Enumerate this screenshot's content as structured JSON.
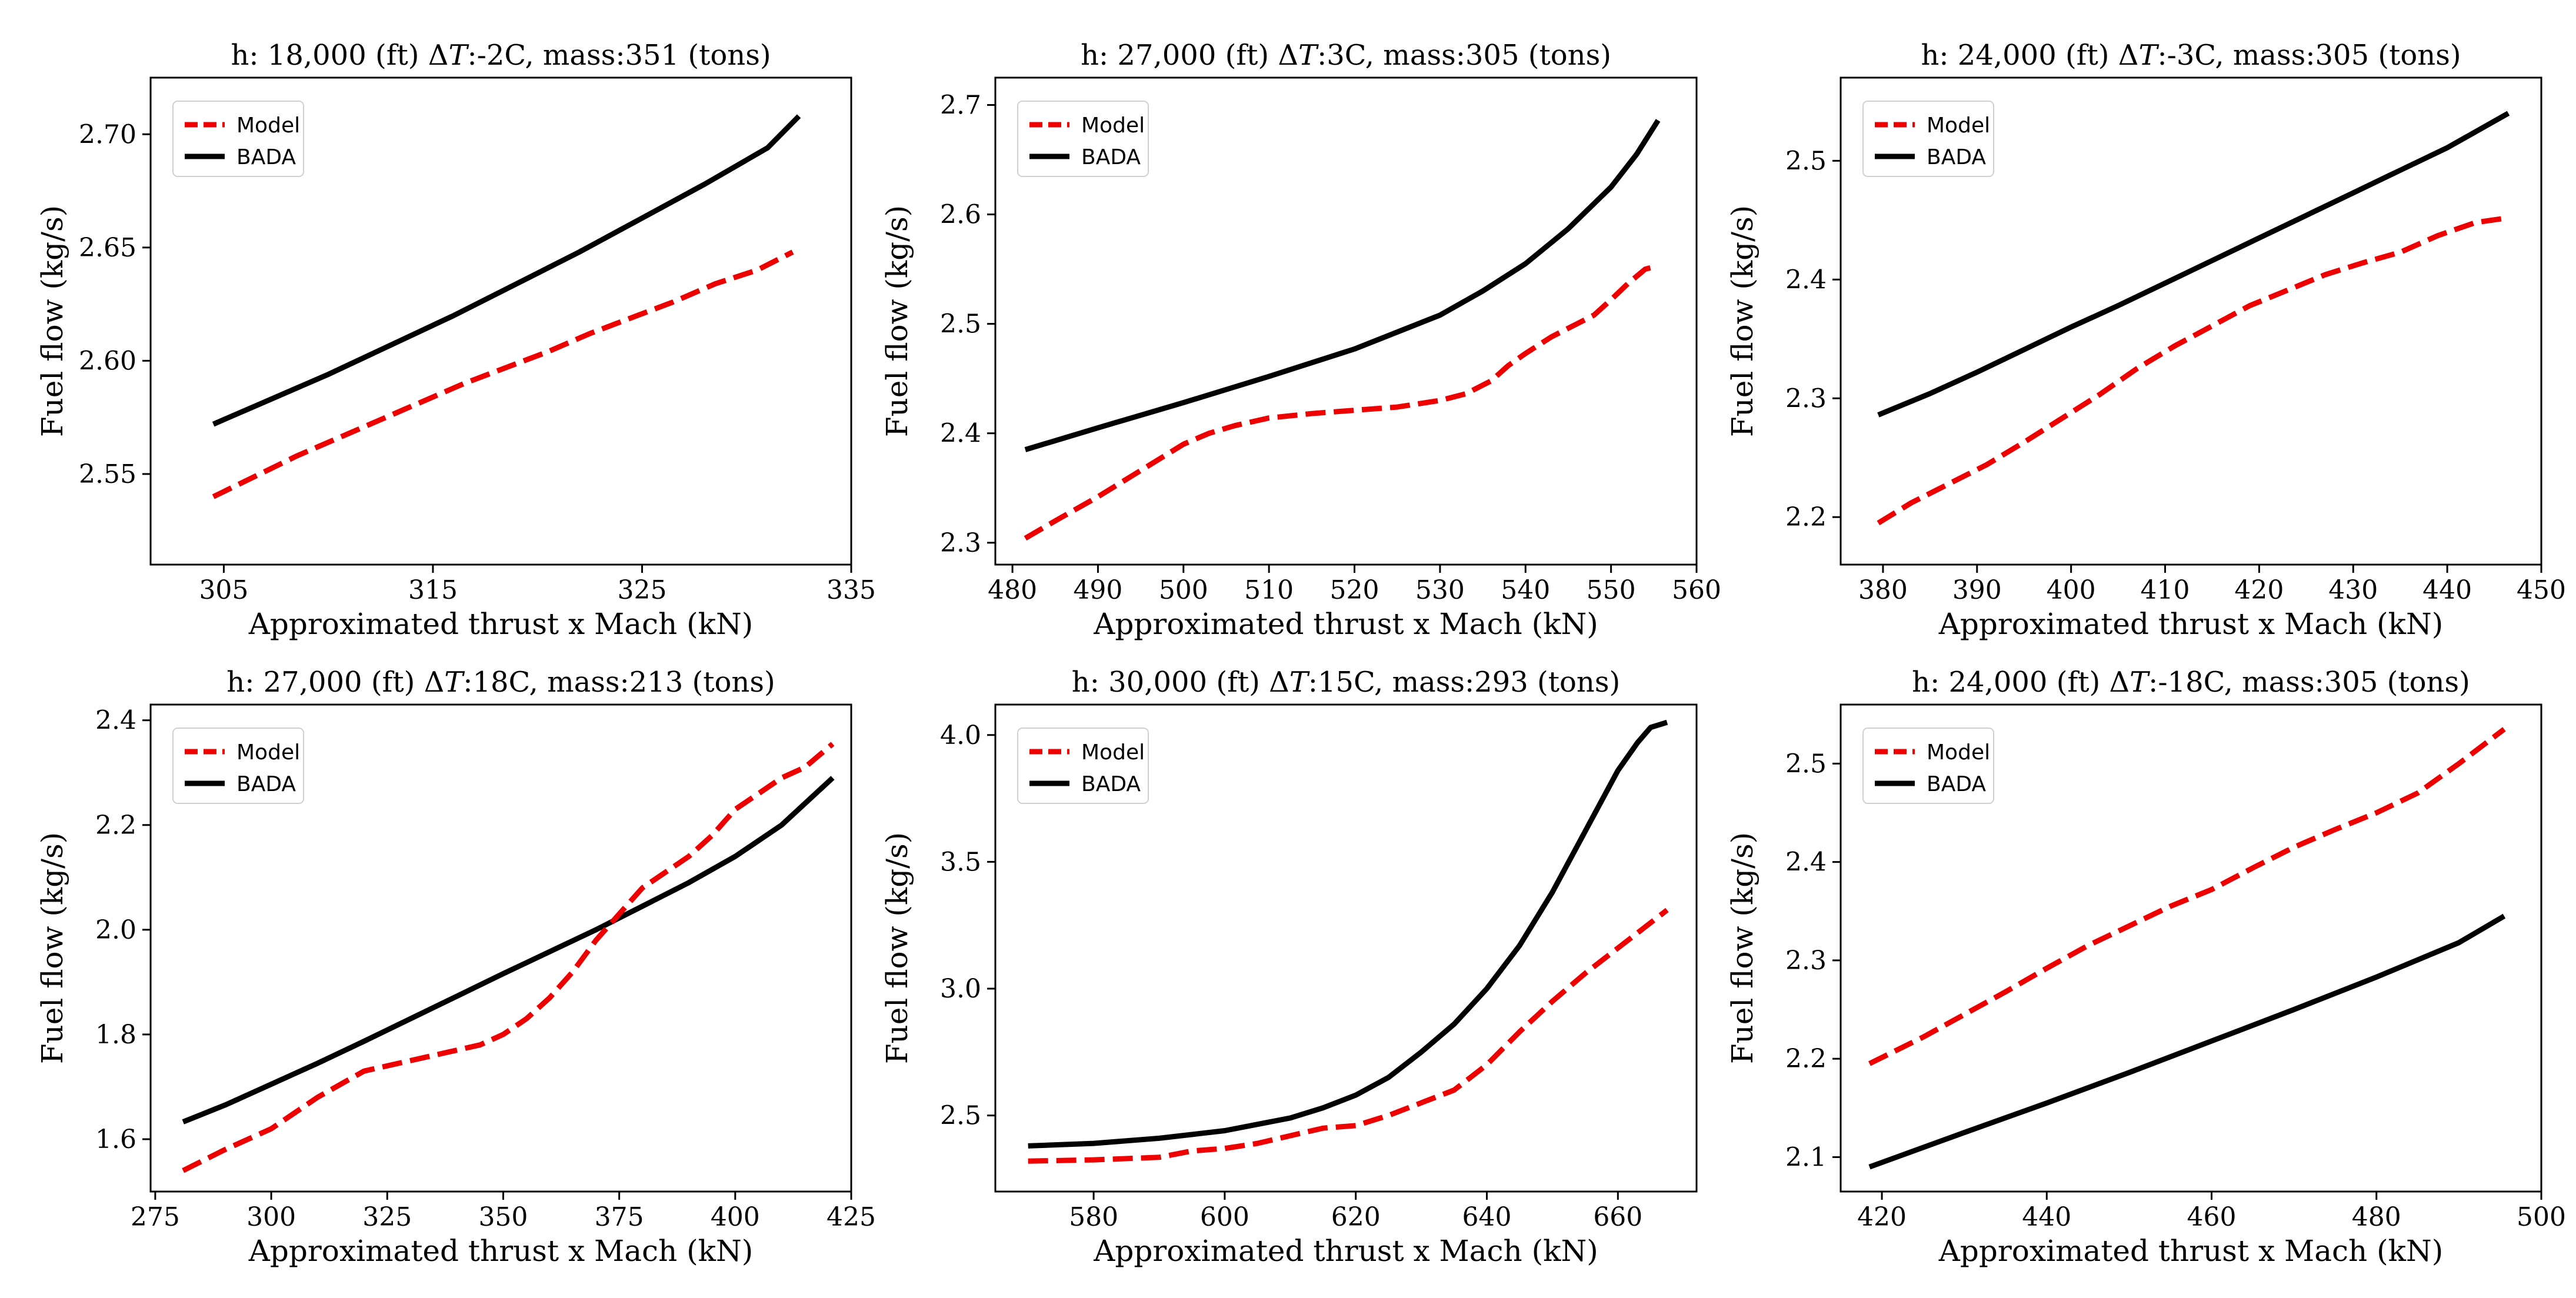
{
  "colors": {
    "model": "#ee0000",
    "bada": "#000000"
  },
  "chart_data": [
    {
      "type": "line",
      "title": "h: 18,000 (ft) ΔT:-2C, mass:351 (tons)",
      "title_parts": {
        "prefix": "h: 18,000 (ft) Δ",
        "italic": "T",
        "suffix": ":-2C, mass:351 (tons)"
      },
      "xlabel": "Approximated thrust x Mach (kN)",
      "ylabel": "Fuel flow (kg/s)",
      "xlim": [
        301.5,
        335
      ],
      "ylim": [
        2.51,
        2.725
      ],
      "xticks": [
        305,
        315,
        325,
        335
      ],
      "xtick_labels": [
        "305",
        "315",
        "325",
        "335"
      ],
      "yticks": [
        2.55,
        2.6,
        2.65,
        2.7
      ],
      "ytick_labels": [
        "2.55",
        "2.60",
        "2.65",
        "2.70"
      ],
      "legend": {
        "position": "upper-left",
        "order": [
          "Model",
          "BADA"
        ]
      },
      "series": [
        {
          "name": "Model",
          "style": "dashed",
          "x": [
            304.5,
            306.5,
            308.5,
            310.5,
            312.5,
            314.5,
            316.5,
            318.5,
            320.5,
            322.5,
            324.5,
            326.5,
            328.5,
            330.5,
            332.2
          ],
          "y": [
            2.54,
            2.549,
            2.558,
            2.566,
            2.574,
            2.582,
            2.59,
            2.597,
            2.604,
            2.612,
            2.619,
            2.626,
            2.634,
            2.64,
            2.648
          ]
        },
        {
          "name": "BADA",
          "style": "solid",
          "x": [
            304.5,
            307,
            310,
            313,
            316,
            319,
            322,
            325,
            328,
            331,
            332.5
          ],
          "y": [
            2.572,
            2.582,
            2.594,
            2.607,
            2.62,
            2.634,
            2.648,
            2.663,
            2.678,
            2.694,
            2.708
          ]
        }
      ]
    },
    {
      "type": "line",
      "title": "h: 27,000 (ft) ΔT:3C, mass:305 (tons)",
      "title_parts": {
        "prefix": "h: 27,000 (ft) Δ",
        "italic": "T",
        "suffix": ":3C, mass:305 (tons)"
      },
      "xlabel": "Approximated thrust x Mach (kN)",
      "ylabel": "Fuel flow (kg/s)",
      "xlim": [
        478,
        560
      ],
      "ylim": [
        2.28,
        2.725
      ],
      "xticks": [
        480,
        490,
        500,
        510,
        520,
        530,
        540,
        550,
        560
      ],
      "xtick_labels": [
        "480",
        "490",
        "500",
        "510",
        "520",
        "530",
        "540",
        "550",
        "560"
      ],
      "yticks": [
        2.3,
        2.4,
        2.5,
        2.6,
        2.7
      ],
      "ytick_labels": [
        "2.3",
        "2.4",
        "2.5",
        "2.6",
        "2.7"
      ],
      "legend": {
        "position": "upper-left",
        "order": [
          "Model",
          "BADA"
        ]
      },
      "series": [
        {
          "name": "Model",
          "style": "dashed",
          "x": [
            481.5,
            485,
            490,
            495,
            500,
            503,
            506,
            510,
            515,
            520,
            525,
            530,
            533,
            536,
            538,
            540,
            543,
            546,
            548,
            550,
            552,
            554,
            555.5
          ],
          "y": [
            2.304,
            2.32,
            2.342,
            2.366,
            2.39,
            2.4,
            2.407,
            2.414,
            2.418,
            2.421,
            2.424,
            2.43,
            2.436,
            2.448,
            2.462,
            2.473,
            2.488,
            2.5,
            2.508,
            2.522,
            2.537,
            2.55,
            2.553
          ]
        },
        {
          "name": "BADA",
          "style": "solid",
          "x": [
            481.5,
            490,
            500,
            510,
            520,
            530,
            535,
            540,
            545,
            550,
            553,
            555.5
          ],
          "y": [
            2.385,
            2.405,
            2.428,
            2.452,
            2.477,
            2.508,
            2.53,
            2.555,
            2.587,
            2.625,
            2.655,
            2.686
          ]
        }
      ]
    },
    {
      "type": "line",
      "title": "h: 24,000 (ft) ΔT:-3C, mass:305 (tons)",
      "title_parts": {
        "prefix": "h: 24,000 (ft) Δ",
        "italic": "T",
        "suffix": ":-3C, mass:305 (tons)"
      },
      "xlabel": "Approximated thrust x Mach (kN)",
      "ylabel": "Fuel flow (kg/s)",
      "xlim": [
        375.5,
        450
      ],
      "ylim": [
        2.16,
        2.57
      ],
      "xticks": [
        380,
        390,
        400,
        410,
        420,
        430,
        440,
        450
      ],
      "xtick_labels": [
        "380",
        "390",
        "400",
        "410",
        "420",
        "430",
        "440",
        "450"
      ],
      "yticks": [
        2.2,
        2.3,
        2.4,
        2.5
      ],
      "ytick_labels": [
        "2.2",
        "2.3",
        "2.4",
        "2.5"
      ],
      "legend": {
        "position": "upper-left",
        "order": [
          "Model",
          "BADA"
        ]
      },
      "series": [
        {
          "name": "Model",
          "style": "dashed",
          "x": [
            379.5,
            383,
            387,
            391,
            395,
            399,
            403,
            407,
            411,
            415,
            419,
            423,
            427,
            431,
            435,
            439,
            443,
            446.5
          ],
          "y": [
            2.195,
            2.212,
            2.228,
            2.244,
            2.263,
            2.283,
            2.303,
            2.325,
            2.344,
            2.361,
            2.378,
            2.391,
            2.404,
            2.414,
            2.423,
            2.437,
            2.448,
            2.452
          ]
        },
        {
          "name": "BADA",
          "style": "solid",
          "x": [
            379.5,
            385,
            390,
            395,
            400,
            405,
            410,
            415,
            420,
            425,
            430,
            435,
            440,
            446.5
          ],
          "y": [
            2.286,
            2.304,
            2.322,
            2.341,
            2.36,
            2.378,
            2.397,
            2.416,
            2.435,
            2.454,
            2.473,
            2.492,
            2.511,
            2.54
          ]
        }
      ]
    },
    {
      "type": "line",
      "title": "h: 27,000 (ft) ΔT:18C, mass:213 (tons)",
      "title_parts": {
        "prefix": "h: 27,000 (ft) Δ",
        "italic": "T",
        "suffix": ":18C, mass:213 (tons)"
      },
      "xlabel": "Approximated thrust x Mach (kN)",
      "ylabel": "Fuel flow (kg/s)",
      "xlim": [
        274,
        425
      ],
      "ylim": [
        1.5,
        2.43
      ],
      "xticks": [
        275,
        300,
        325,
        350,
        375,
        400,
        425
      ],
      "xtick_labels": [
        "275",
        "300",
        "325",
        "350",
        "375",
        "400",
        "425"
      ],
      "yticks": [
        1.6,
        1.8,
        2.0,
        2.2,
        2.4
      ],
      "ytick_labels": [
        "1.6",
        "1.8",
        "2.0",
        "2.2",
        "2.4"
      ],
      "legend": {
        "position": "upper-left",
        "order": [
          "Model",
          "BADA"
        ]
      },
      "series": [
        {
          "name": "Model",
          "style": "dashed",
          "x": [
            281,
            290,
            300,
            305,
            310,
            320,
            330,
            340,
            345,
            350,
            355,
            360,
            365,
            370,
            375,
            380,
            385,
            390,
            395,
            400,
            405,
            410,
            415,
            421
          ],
          "y": [
            1.54,
            1.58,
            1.62,
            1.65,
            1.68,
            1.73,
            1.75,
            1.77,
            1.78,
            1.8,
            1.83,
            1.87,
            1.92,
            1.98,
            2.03,
            2.08,
            2.11,
            2.14,
            2.18,
            2.23,
            2.26,
            2.29,
            2.31,
            2.355
          ]
        },
        {
          "name": "BADA",
          "style": "solid",
          "x": [
            281,
            290,
            300,
            310,
            320,
            330,
            340,
            350,
            360,
            370,
            380,
            390,
            400,
            410,
            421
          ],
          "y": [
            1.633,
            1.665,
            1.705,
            1.745,
            1.787,
            1.83,
            1.873,
            1.916,
            1.958,
            2.0,
            2.045,
            2.09,
            2.14,
            2.2,
            2.29
          ]
        }
      ]
    },
    {
      "type": "line",
      "title": "h: 30,000 (ft) ΔT:15C, mass:293 (tons)",
      "title_parts": {
        "prefix": "h: 30,000 (ft) Δ",
        "italic": "T",
        "suffix": ":15C, mass:293 (tons)"
      },
      "xlabel": "Approximated thrust x Mach (kN)",
      "ylabel": "Fuel flow (kg/s)",
      "xlim": [
        565,
        672
      ],
      "ylim": [
        2.2,
        4.12
      ],
      "xticks": [
        580,
        600,
        620,
        640,
        660
      ],
      "xtick_labels": [
        "580",
        "600",
        "620",
        "640",
        "660"
      ],
      "yticks": [
        2.5,
        3.0,
        3.5,
        4.0
      ],
      "ytick_labels": [
        "2.5",
        "3.0",
        "3.5",
        "4.0"
      ],
      "legend": {
        "position": "upper-left",
        "order": [
          "Model",
          "BADA"
        ]
      },
      "series": [
        {
          "name": "Model",
          "style": "dashed",
          "x": [
            570,
            580,
            590,
            595,
            600,
            605,
            610,
            615,
            620,
            625,
            630,
            635,
            640,
            645,
            650,
            655,
            660,
            664,
            667.5
          ],
          "y": [
            2.32,
            2.325,
            2.335,
            2.36,
            2.37,
            2.39,
            2.42,
            2.45,
            2.46,
            2.5,
            2.55,
            2.6,
            2.7,
            2.83,
            2.95,
            3.06,
            3.16,
            3.24,
            3.31
          ]
        },
        {
          "name": "BADA",
          "style": "solid",
          "x": [
            570,
            580,
            590,
            600,
            610,
            615,
            620,
            625,
            630,
            635,
            640,
            645,
            650,
            655,
            660,
            663,
            665,
            667.5
          ],
          "y": [
            2.38,
            2.39,
            2.41,
            2.44,
            2.49,
            2.53,
            2.58,
            2.65,
            2.75,
            2.86,
            3.0,
            3.17,
            3.38,
            3.62,
            3.86,
            3.97,
            4.03,
            4.05
          ]
        }
      ]
    },
    {
      "type": "line",
      "title": "h: 24,000 (ft) ΔT:-18C, mass:305 (tons)",
      "title_parts": {
        "prefix": "h: 24,000 (ft) Δ",
        "italic": "T",
        "suffix": ":-18C, mass:305 (tons)"
      },
      "xlabel": "Approximated thrust x Mach (kN)",
      "ylabel": "Fuel flow (kg/s)",
      "xlim": [
        415,
        500
      ],
      "ylim": [
        2.065,
        2.56
      ],
      "xticks": [
        420,
        440,
        460,
        480,
        500
      ],
      "xtick_labels": [
        "420",
        "440",
        "460",
        "480",
        "500"
      ],
      "yticks": [
        2.1,
        2.2,
        2.3,
        2.4,
        2.5
      ],
      "ytick_labels": [
        "2.1",
        "2.2",
        "2.3",
        "2.4",
        "2.5"
      ],
      "legend": {
        "position": "upper-left",
        "order": [
          "Model",
          "BADA"
        ]
      },
      "series": [
        {
          "name": "Model",
          "style": "dashed",
          "x": [
            418.5,
            425,
            430,
            435,
            440,
            445,
            450,
            455,
            460,
            465,
            470,
            475,
            480,
            485,
            490,
            495.5
          ],
          "y": [
            2.195,
            2.222,
            2.245,
            2.268,
            2.292,
            2.315,
            2.335,
            2.355,
            2.372,
            2.394,
            2.415,
            2.433,
            2.45,
            2.47,
            2.5,
            2.535
          ]
        },
        {
          "name": "BADA",
          "style": "solid",
          "x": [
            418.5,
            430,
            440,
            450,
            460,
            470,
            480,
            490,
            495.5
          ],
          "y": [
            2.09,
            2.125,
            2.155,
            2.186,
            2.218,
            2.25,
            2.283,
            2.318,
            2.345
          ]
        }
      ]
    }
  ]
}
